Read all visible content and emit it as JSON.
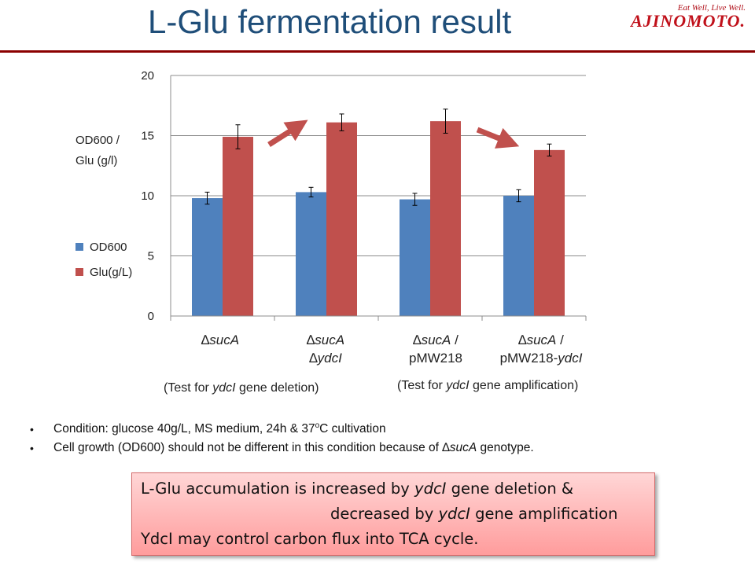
{
  "slide": {
    "title": "L-Glu fermentation result",
    "logo_tagline": "Eat Well, Live Well.",
    "logo_name": "AJINOMOTO."
  },
  "colors": {
    "od600": "#4f81bd",
    "glu": "#c0504d",
    "title": "#1f4e79",
    "rule": "#8b0000",
    "arrow": "#c0504d"
  },
  "chart_data": {
    "type": "bar",
    "title": "",
    "ylabel_line1": "OD600 /",
    "ylabel_line2": "Glu (g/l)",
    "ylim": [
      0,
      20
    ],
    "yticks": [
      "0",
      "5",
      "10",
      "15",
      "20"
    ],
    "grid": true,
    "legend_position": "left",
    "categories": [
      {
        "prefix": "∆",
        "italic1": "sucA",
        "rest1": "",
        "prefix2": "",
        "italic2": "",
        "rest2": ""
      },
      {
        "prefix": "∆",
        "italic1": "sucA",
        "rest1": "",
        "prefix2": "∆",
        "italic2": "ydcI",
        "rest2": ""
      },
      {
        "prefix": "∆",
        "italic1": "sucA",
        "rest1": " /",
        "prefix2": "",
        "italic2": "",
        "rest2": "pMW218"
      },
      {
        "prefix": "∆",
        "italic1": "sucA",
        "rest1": " /",
        "prefix2": "",
        "italic2": "ydcI",
        "rest2": "pMW218-"
      }
    ],
    "series": [
      {
        "name": "OD600",
        "values": [
          9.8,
          10.3,
          9.7,
          10.0
        ],
        "errors": [
          0.5,
          0.4,
          0.5,
          0.5
        ]
      },
      {
        "name": "Glu(g/L)",
        "values": [
          14.9,
          16.1,
          16.2,
          13.8
        ],
        "errors": [
          1.0,
          0.7,
          1.0,
          0.5
        ]
      }
    ],
    "annotations": {
      "deletion_note_pre": "(Test for ",
      "deletion_note_gene": "ydcI",
      "deletion_note_post": " gene deletion)",
      "amplification_note_pre": "(Test for ",
      "amplification_note_gene": "ydcI",
      "amplification_note_post": " gene amplification)"
    }
  },
  "bullets": {
    "b1_pre": "Condition: glucose 40g/L, MS medium, 24h & 37",
    "b1_sup": "o",
    "b1_post": "C cultivation",
    "b2_pre": "Cell growth (OD600) should not be different in this condition because of ",
    "b2_delta": "∆",
    "b2_gene": "sucA",
    "b2_post": " genotype."
  },
  "callout": {
    "l1_pre": "L-Glu accumulation is increased by ",
    "l1_gene": "ydcI",
    "l1_post": " gene deletion &",
    "l2_pre": "decreased by ",
    "l2_gene": "ydcI",
    "l2_post": " gene amplification",
    "l3_arrow": "",
    "l3_text": " YdcI may control carbon flux into TCA cycle."
  }
}
